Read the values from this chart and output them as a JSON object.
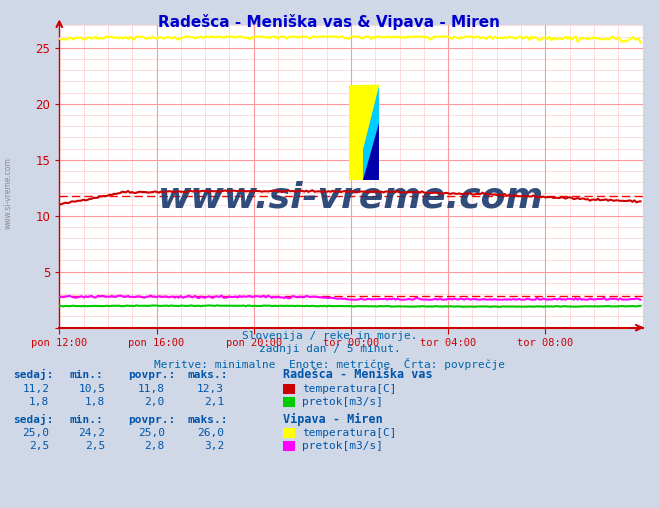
{
  "title": "Radešca - Meniška vas & Vipava - Miren",
  "title_color": "#0000cc",
  "bg_color": "#d0d8e8",
  "plot_bg_color": "#ffffff",
  "grid_color_major": "#ff9999",
  "grid_color_minor": "#ffcccc",
  "xlabel_ticks": [
    "pon 12:00",
    "pon 16:00",
    "pon 20:00",
    "tor 00:00",
    "tor 04:00",
    "tor 08:00"
  ],
  "ylim": [
    0,
    27
  ],
  "xlim": [
    0,
    288
  ],
  "n_points": 288,
  "radesca_temp_avg": 11.8,
  "vipava_pretok_avg": 2.8,
  "color_radesca_temp": "#cc0000",
  "color_radesca_pretok": "#00cc00",
  "color_vipava_temp": "#ffff00",
  "color_vipava_pretok": "#ff00ff",
  "color_avg_dashed": "#ff0000",
  "watermark_color": "#1a3a6e",
  "watermark_text": "www.si-vreme.com",
  "footer_line1": "Slovenija / reke in morje.",
  "footer_line2": "zadnji dan / 5 minut.",
  "footer_line3": "Meritve: minimalne  Enote: metrične  Črta: povprečje",
  "footer_color": "#0066aa",
  "label_color": "#0055aa",
  "tick_label_color": "#0066aa",
  "axis_color": "#cc0000",
  "legend_station1": "Radešca - Meniška vas",
  "legend_station2": "Vipava - Miren",
  "legend_temp": "temperatura[C]",
  "legend_pretok": "pretok[m3/s]",
  "table_headers": [
    "sedaj:",
    "min.:",
    "povpr.:",
    "maks.:"
  ],
  "radesca_row1": [
    "11,2",
    "10,5",
    "11,8",
    "12,3"
  ],
  "radesca_row2": [
    "1,8",
    "1,8",
    "2,0",
    "2,1"
  ],
  "vipava_row1": [
    "25,0",
    "24,2",
    "25,0",
    "26,0"
  ],
  "vipava_row2": [
    "2,5",
    "2,5",
    "2,8",
    "3,2"
  ],
  "logo_colors": [
    "#ffff00",
    "#00ccff",
    "#0000aa"
  ],
  "side_watermark_color": "#777777"
}
